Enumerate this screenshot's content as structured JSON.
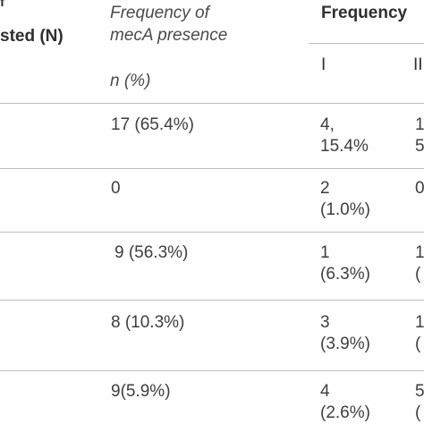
{
  "header": {
    "col_tested_line1": "f",
    "col_tested_line2": "sted (N)",
    "col_freq_mecA_line1": "Frequency of",
    "col_freq_mecA_line2": "mecA presence",
    "col_freq_mecA_sub": "n (%)",
    "col_freq_group": "Frequency",
    "sub_col_I": "I",
    "sub_col_II": "II"
  },
  "rows": [
    {
      "mecA": "17 (65.4%)",
      "i_line1": "4,",
      "i_line2": "15.4%",
      "ii_line1": "1",
      "ii_line2": "5"
    },
    {
      "mecA": "0",
      "i_line1": "2",
      "i_line2": "(1.0%)",
      "ii_line1": "0",
      "ii_line2": ""
    },
    {
      "mecA": "9 (56.3%)",
      "i_line1": "1",
      "i_line2": "(6.3%)",
      "ii_line1": "1",
      "ii_line2": "("
    },
    {
      "mecA": "8 (10.3%)",
      "i_line1": "3",
      "i_line2": "(3.9%)",
      "ii_line1": "1",
      "ii_line2": "("
    },
    {
      "mecA": "9(5.9%)",
      "i_line1": "4",
      "i_line2": "(2.6%)",
      "ii_line1": "5",
      "ii_line2": "("
    }
  ]
}
